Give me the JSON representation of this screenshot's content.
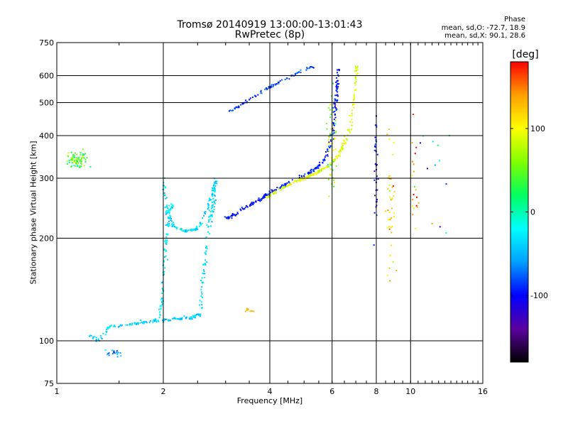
{
  "chart_data": {
    "type": "scatter",
    "title": "Tromsø 20140919 13:00:00-13:01:43",
    "subtitle": "RwPretec (8p)",
    "xlabel": "Frequency [MHz]",
    "ylabel": "Stationary phase Virtual Height [km]",
    "x_scale": "log2",
    "y_scale": "log",
    "xlim": [
      1,
      16
    ],
    "ylim": [
      75,
      750
    ],
    "x_ticks": [
      1,
      2,
      4,
      6,
      8,
      10,
      16
    ],
    "x_tick_labels": [
      "1",
      "2",
      "4",
      "6",
      "8",
      "10",
      "16"
    ],
    "y_ticks": [
      75,
      100,
      200,
      300,
      400,
      500,
      600,
      750
    ],
    "y_tick_labels": [
      "75",
      "100",
      "200",
      "300",
      "400",
      "500",
      "600",
      "750"
    ],
    "grid": true,
    "phase_stats": {
      "heading": "Phase",
      "line_o": "mean, sd,O: -72.7, 18.9",
      "line_x": "mean, sd,X:  90.1, 28.6"
    },
    "colorbar": {
      "label": "[deg]",
      "range": [
        -180,
        180
      ],
      "ticks": [
        100,
        0,
        -100
      ],
      "tick_labels": [
        "100",
        "0",
        "-100"
      ],
      "colors": [
        "#000000",
        "#5a00a0",
        "#0000ff",
        "#00a0ff",
        "#00ffff",
        "#00ff60",
        "#80ff00",
        "#ffff00",
        "#ffa000",
        "#ff0000"
      ]
    },
    "series": [
      {
        "kind": "curve",
        "points": [
          [
            1.25,
            103
          ],
          [
            1.32,
            100
          ],
          [
            1.4,
            110
          ],
          [
            1.55,
            111
          ],
          [
            1.7,
            113
          ],
          [
            1.85,
            114
          ],
          [
            2.0,
            115
          ],
          [
            2.2,
            116
          ],
          [
            2.4,
            117
          ],
          [
            2.55,
            120
          ]
        ],
        "phase": -40,
        "spread": 0.015,
        "n": 150
      },
      {
        "kind": "curve",
        "points": [
          [
            1.95,
            118
          ],
          [
            1.98,
            130
          ],
          [
            2.0,
            150
          ],
          [
            2.03,
            180
          ],
          [
            2.05,
            210
          ],
          [
            2.08,
            240
          ],
          [
            2.12,
            250
          ]
        ],
        "phase": -30,
        "spread": 0.015,
        "n": 90
      },
      {
        "kind": "curve",
        "points": [
          [
            2.0,
            300
          ],
          [
            2.02,
            260
          ],
          [
            2.05,
            235
          ],
          [
            2.15,
            215
          ],
          [
            2.3,
            210
          ],
          [
            2.45,
            212
          ],
          [
            2.55,
            220
          ],
          [
            2.65,
            240
          ],
          [
            2.75,
            270
          ],
          [
            2.82,
            300
          ]
        ],
        "phase": -35,
        "spread": 0.012,
        "n": 140
      },
      {
        "kind": "curve",
        "points": [
          [
            2.55,
            118
          ],
          [
            2.58,
            140
          ],
          [
            2.62,
            170
          ],
          [
            2.66,
            200
          ],
          [
            2.72,
            230
          ],
          [
            2.78,
            250
          ],
          [
            2.8,
            280
          ]
        ],
        "phase": -32,
        "spread": 0.015,
        "n": 90
      },
      {
        "kind": "curve",
        "points": [
          [
            3.0,
            228
          ],
          [
            3.2,
            235
          ],
          [
            3.5,
            250
          ],
          [
            3.8,
            262
          ],
          [
            4.1,
            275
          ],
          [
            4.5,
            290
          ],
          [
            5.0,
            305
          ],
          [
            5.4,
            320
          ],
          [
            5.7,
            340
          ],
          [
            5.9,
            370
          ],
          [
            6.05,
            420
          ],
          [
            6.15,
            500
          ],
          [
            6.2,
            560
          ],
          [
            6.25,
            640
          ]
        ],
        "phase": -95,
        "spread": 0.014,
        "n": 260
      },
      {
        "kind": "curve",
        "points": [
          [
            3.9,
            262
          ],
          [
            4.2,
            275
          ],
          [
            4.6,
            290
          ],
          [
            5.0,
            300
          ],
          [
            5.4,
            310
          ],
          [
            5.8,
            325
          ],
          [
            6.2,
            345
          ],
          [
            6.5,
            380
          ],
          [
            6.75,
            420
          ],
          [
            6.9,
            500
          ],
          [
            7.0,
            580
          ],
          [
            7.05,
            640
          ]
        ],
        "phase": 90,
        "spread": 0.012,
        "n": 200
      },
      {
        "kind": "curve",
        "points": [
          [
            3.1,
            472
          ],
          [
            3.3,
            490
          ],
          [
            3.6,
            520
          ],
          [
            3.9,
            548
          ],
          [
            4.2,
            570
          ],
          [
            4.5,
            590
          ],
          [
            4.8,
            610
          ],
          [
            5.1,
            628
          ],
          [
            5.3,
            640
          ]
        ],
        "phase": -85,
        "spread": 0.01,
        "n": 90
      },
      {
        "kind": "cloud",
        "center": [
          1.14,
          340
        ],
        "size": [
          0.1,
          0.08
        ],
        "phase": 40,
        "n": 80,
        "phase_spread": 90
      },
      {
        "kind": "cloud",
        "center": [
          1.45,
          92
        ],
        "size": [
          0.1,
          0.04
        ],
        "phase": -60,
        "n": 18,
        "phase_spread": 60
      },
      {
        "kind": "cloud",
        "center": [
          3.5,
          123
        ],
        "size": [
          0.04,
          0.02
        ],
        "phase": 130,
        "n": 10,
        "phase_spread": 10
      },
      {
        "kind": "cloud",
        "center": [
          6.0,
          380
        ],
        "size": [
          0.05,
          0.6
        ],
        "phase": 60,
        "n": 50,
        "phase_spread": 100
      },
      {
        "kind": "cloud",
        "center": [
          8.0,
          300
        ],
        "size": [
          0.02,
          0.7
        ],
        "phase": -100,
        "n": 40,
        "phase_spread": 60
      },
      {
        "kind": "cloud",
        "center": [
          8.8,
          250
        ],
        "size": [
          0.04,
          0.7
        ],
        "phase": 110,
        "n": 45,
        "phase_spread": 70
      },
      {
        "kind": "cloud",
        "center": [
          10.3,
          300
        ],
        "size": [
          0.04,
          0.7
        ],
        "phase": 120,
        "n": 20,
        "phase_spread": 120
      },
      {
        "kind": "cloud",
        "center": [
          11.5,
          300
        ],
        "size": [
          0.15,
          0.7
        ],
        "phase": 0,
        "n": 12,
        "phase_spread": 180
      }
    ]
  }
}
